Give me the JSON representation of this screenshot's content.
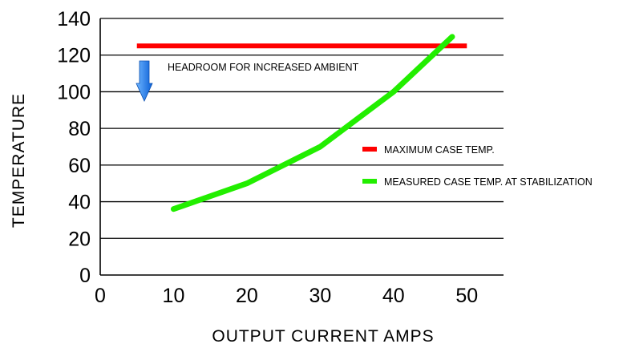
{
  "chart_data": {
    "type": "line",
    "title": "",
    "xlabel": "OUTPUT CURRENT AMPS",
    "ylabel": "TEMPERATURE",
    "xlim": [
      0,
      55
    ],
    "ylim": [
      0,
      140
    ],
    "x_ticks": [
      0,
      10,
      20,
      30,
      40,
      50
    ],
    "y_ticks": [
      0,
      20,
      40,
      60,
      80,
      100,
      120,
      140
    ],
    "grid": "horizontal",
    "legend_position": "right",
    "series": [
      {
        "name": "MAXIMUM CASE TEMP.",
        "color": "#ff0000",
        "x": [
          5,
          50
        ],
        "y": [
          125,
          125
        ]
      },
      {
        "name": "MEASURED CASE TEMP. AT STABILIZATION",
        "color": "#22ee00",
        "x": [
          10,
          20,
          30,
          40,
          48
        ],
        "y": [
          36,
          50,
          70,
          100,
          130
        ]
      }
    ],
    "annotations": [
      {
        "text": "HEADROOM FOR INCREASED AMBIENT",
        "icon": "down-arrow-icon",
        "color": "#1e7fe8"
      }
    ]
  }
}
